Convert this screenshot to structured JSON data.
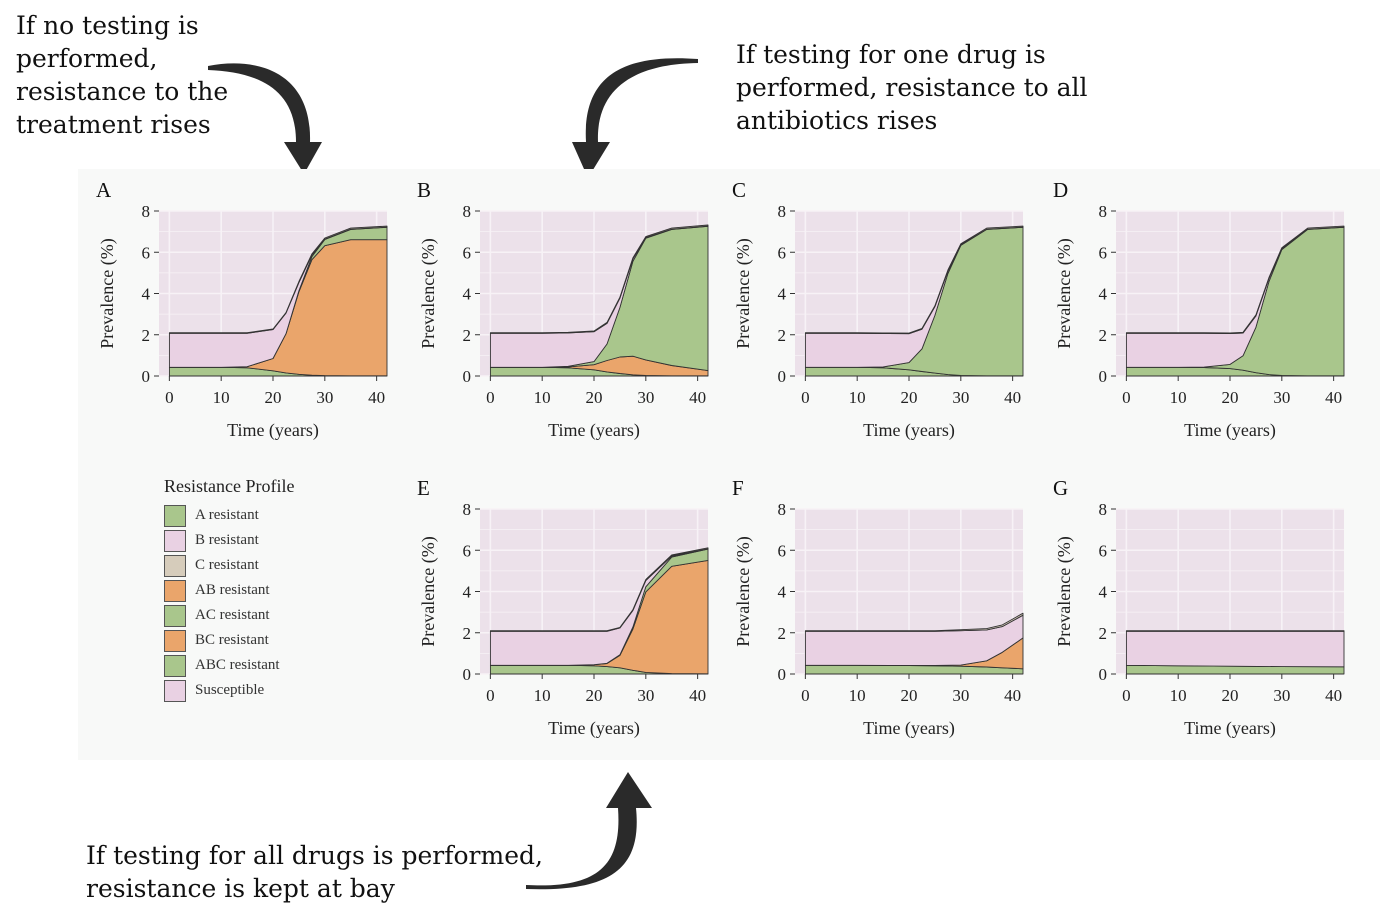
{
  "annotations": {
    "no_testing": "If no testing is performed, resistance to the treatment rises",
    "one_drug": "If testing for one drug is performed, resistance to all antibiotics rises",
    "all_drugs": "If testing for all drugs is performed, resistance is kept at bay"
  },
  "colors": {
    "A resistant": "#a9c68c",
    "B resistant": "#e9d1e3",
    "C resistant": "#d6ccbb",
    "AB resistant": "#eaa56b",
    "AC resistant": "#a9c68c",
    "BC resistant": "#eaa56b",
    "ABC resistant": "#a9c68c",
    "Susceptible": "#e9d1e3",
    "plot_background": "#ece1ea",
    "grid": "#f7f2f6"
  },
  "legend": {
    "title": "Resistance Profile",
    "items": [
      "A resistant",
      "B resistant",
      "C resistant",
      "AB resistant",
      "AC resistant",
      "BC resistant",
      "ABC resistant",
      "Susceptible"
    ]
  },
  "chart_data": [
    {
      "panel": "A",
      "type": "area",
      "stacked": true,
      "x": [
        0,
        10,
        15,
        20,
        22.5,
        25,
        27.5,
        30,
        35,
        42
      ],
      "xlabel": "Time (years)",
      "ylabel": "Prevalence (%)",
      "xticks": [
        0,
        10,
        20,
        30,
        40
      ],
      "yticks": [
        0,
        2,
        4,
        6,
        8
      ],
      "xlim": [
        -2,
        42
      ],
      "ylim": [
        0,
        8
      ],
      "series": [
        {
          "name": "A resistant",
          "values": [
            0.42,
            0.42,
            0.4,
            0.25,
            0.15,
            0.08,
            0.04,
            0.02,
            0.01,
            0.01
          ]
        },
        {
          "name": "AB resistant",
          "values": [
            0.0,
            0.0,
            0.05,
            0.6,
            1.9,
            4.0,
            5.6,
            6.3,
            6.6,
            6.6
          ]
        },
        {
          "name": "ABC resistant",
          "values": [
            0.0,
            0.0,
            0.0,
            0.0,
            0.0,
            0.05,
            0.15,
            0.3,
            0.5,
            0.6
          ]
        },
        {
          "name": "Susceptible",
          "values": [
            1.65,
            1.65,
            1.62,
            1.4,
            1.0,
            0.4,
            0.08,
            0.02,
            0.01,
            0.01
          ]
        },
        {
          "name": "C resistant",
          "values": [
            0.03,
            0.03,
            0.03,
            0.03,
            0.03,
            0.05,
            0.05,
            0.05,
            0.05,
            0.05
          ]
        }
      ]
    },
    {
      "panel": "B",
      "type": "area",
      "stacked": true,
      "x": [
        0,
        10,
        15,
        20,
        22.5,
        25,
        27.5,
        30,
        35,
        42
      ],
      "xlabel": "Time (years)",
      "ylabel": "Prevalence (%)",
      "xticks": [
        0,
        10,
        20,
        30,
        40
      ],
      "yticks": [
        0,
        2,
        4,
        6,
        8
      ],
      "xlim": [
        -2,
        42
      ],
      "ylim": [
        0,
        8
      ],
      "series": [
        {
          "name": "A resistant",
          "values": [
            0.42,
            0.42,
            0.4,
            0.3,
            0.2,
            0.12,
            0.06,
            0.03,
            0.01,
            0.01
          ]
        },
        {
          "name": "AB resistant",
          "values": [
            0.0,
            0.0,
            0.04,
            0.25,
            0.55,
            0.8,
            0.9,
            0.75,
            0.5,
            0.25
          ]
        },
        {
          "name": "ABC resistant",
          "values": [
            0.0,
            0.0,
            0.03,
            0.15,
            0.8,
            2.4,
            4.6,
            5.9,
            6.6,
            7.0
          ]
        },
        {
          "name": "Susceptible",
          "values": [
            1.65,
            1.65,
            1.62,
            1.45,
            1.0,
            0.45,
            0.12,
            0.03,
            0.01,
            0.01
          ]
        },
        {
          "name": "C resistant",
          "values": [
            0.03,
            0.03,
            0.03,
            0.03,
            0.05,
            0.05,
            0.05,
            0.05,
            0.05,
            0.05
          ]
        }
      ]
    },
    {
      "panel": "C",
      "type": "area",
      "stacked": true,
      "x": [
        0,
        10,
        15,
        20,
        22.5,
        25,
        27.5,
        30,
        35,
        42
      ],
      "xlabel": "Time (years)",
      "ylabel": "Prevalence (%)",
      "xticks": [
        0,
        10,
        20,
        30,
        40
      ],
      "yticks": [
        0,
        2,
        4,
        6,
        8
      ],
      "xlim": [
        -2,
        42
      ],
      "ylim": [
        0,
        8
      ],
      "series": [
        {
          "name": "A resistant",
          "values": [
            0.42,
            0.42,
            0.4,
            0.3,
            0.22,
            0.14,
            0.07,
            0.03,
            0.01,
            0.01
          ]
        },
        {
          "name": "AC resistant",
          "values": [
            0.0,
            0.0,
            0.04,
            0.35,
            1.1,
            2.8,
            4.9,
            6.3,
            7.1,
            7.2
          ]
        },
        {
          "name": "Susceptible",
          "values": [
            1.65,
            1.65,
            1.62,
            1.4,
            0.95,
            0.42,
            0.12,
            0.03,
            0.01,
            0.01
          ]
        },
        {
          "name": "C resistant",
          "values": [
            0.03,
            0.03,
            0.03,
            0.03,
            0.04,
            0.05,
            0.05,
            0.05,
            0.05,
            0.05
          ]
        }
      ]
    },
    {
      "panel": "D",
      "type": "area",
      "stacked": true,
      "x": [
        0,
        10,
        15,
        20,
        22.5,
        25,
        27.5,
        30,
        35,
        42
      ],
      "xlabel": "Time (years)",
      "ylabel": "Prevalence (%)",
      "xticks": [
        0,
        10,
        20,
        30,
        40
      ],
      "yticks": [
        0,
        2,
        4,
        6,
        8
      ],
      "xlim": [
        -2,
        42
      ],
      "ylim": [
        0,
        8
      ],
      "series": [
        {
          "name": "A resistant",
          "values": [
            0.42,
            0.42,
            0.41,
            0.36,
            0.28,
            0.16,
            0.07,
            0.03,
            0.01,
            0.01
          ]
        },
        {
          "name": "AC resistant",
          "values": [
            0.0,
            0.0,
            0.02,
            0.2,
            0.7,
            2.2,
            4.5,
            6.1,
            7.1,
            7.2
          ]
        },
        {
          "name": "Susceptible",
          "values": [
            1.65,
            1.65,
            1.64,
            1.5,
            1.1,
            0.55,
            0.15,
            0.04,
            0.01,
            0.01
          ]
        },
        {
          "name": "C resistant",
          "values": [
            0.03,
            0.03,
            0.03,
            0.03,
            0.04,
            0.05,
            0.05,
            0.05,
            0.05,
            0.05
          ]
        }
      ]
    },
    {
      "panel": "E",
      "type": "area",
      "stacked": true,
      "x": [
        0,
        10,
        15,
        20,
        22.5,
        25,
        27.5,
        30,
        35,
        42
      ],
      "xlabel": "Time (years)",
      "ylabel": "Prevalence (%)",
      "xticks": [
        0,
        10,
        20,
        30,
        40
      ],
      "yticks": [
        0,
        2,
        4,
        6,
        8
      ],
      "xlim": [
        -2,
        42
      ],
      "ylim": [
        0,
        8
      ],
      "series": [
        {
          "name": "A resistant",
          "values": [
            0.42,
            0.42,
            0.42,
            0.4,
            0.36,
            0.3,
            0.18,
            0.08,
            0.02,
            0.01
          ]
        },
        {
          "name": "AB resistant",
          "values": [
            0.0,
            0.0,
            0.0,
            0.05,
            0.15,
            0.6,
            2.0,
            3.9,
            5.2,
            5.5
          ]
        },
        {
          "name": "ABC resistant",
          "values": [
            0.0,
            0.0,
            0.0,
            0.0,
            0.01,
            0.03,
            0.1,
            0.25,
            0.45,
            0.55
          ]
        },
        {
          "name": "Susceptible",
          "values": [
            1.65,
            1.65,
            1.65,
            1.62,
            1.55,
            1.3,
            0.8,
            0.3,
            0.05,
            0.01
          ]
        },
        {
          "name": "C resistant",
          "values": [
            0.03,
            0.03,
            0.03,
            0.03,
            0.03,
            0.03,
            0.04,
            0.05,
            0.05,
            0.05
          ]
        }
      ]
    },
    {
      "panel": "F",
      "type": "area",
      "stacked": true,
      "x": [
        0,
        10,
        20,
        25,
        30,
        35,
        38,
        42
      ],
      "xlabel": "Time (years)",
      "ylabel": "Prevalence (%)",
      "xticks": [
        0,
        10,
        20,
        30,
        40
      ],
      "yticks": [
        0,
        2,
        4,
        6,
        8
      ],
      "xlim": [
        -2,
        42
      ],
      "ylim": [
        0,
        8
      ],
      "series": [
        {
          "name": "A resistant",
          "values": [
            0.42,
            0.42,
            0.41,
            0.4,
            0.38,
            0.34,
            0.3,
            0.25
          ]
        },
        {
          "name": "AB resistant",
          "values": [
            0.0,
            0.0,
            0.0,
            0.01,
            0.05,
            0.3,
            0.75,
            1.5
          ]
        },
        {
          "name": "Susceptible",
          "values": [
            1.65,
            1.65,
            1.66,
            1.66,
            1.67,
            1.5,
            1.25,
            1.1
          ]
        },
        {
          "name": "C resistant",
          "values": [
            0.03,
            0.03,
            0.03,
            0.03,
            0.05,
            0.06,
            0.08,
            0.1
          ]
        }
      ]
    },
    {
      "panel": "G",
      "type": "area",
      "stacked": true,
      "x": [
        0,
        10,
        20,
        30,
        42
      ],
      "xlabel": "Time (years)",
      "ylabel": "Prevalence (%)",
      "xticks": [
        0,
        10,
        20,
        30,
        40
      ],
      "yticks": [
        0,
        2,
        4,
        6,
        8
      ],
      "xlim": [
        -2,
        42
      ],
      "ylim": [
        0,
        8
      ],
      "series": [
        {
          "name": "A resistant",
          "values": [
            0.42,
            0.4,
            0.38,
            0.36,
            0.35
          ]
        },
        {
          "name": "Susceptible",
          "values": [
            1.65,
            1.67,
            1.69,
            1.71,
            1.72
          ]
        },
        {
          "name": "C resistant",
          "values": [
            0.03,
            0.03,
            0.03,
            0.03,
            0.03
          ]
        }
      ]
    }
  ]
}
